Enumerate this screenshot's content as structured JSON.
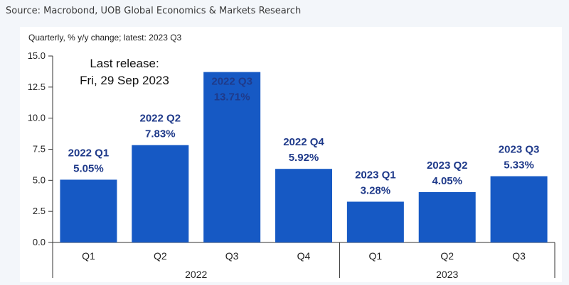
{
  "source": "Source: Macrobond, UOB Global Economics & Markets Research",
  "subtitle": "Quarterly, % y/y change; latest: 2023 Q3",
  "annotation": {
    "line1": "Last release:",
    "line2": "Fri, 29 Sep 2023"
  },
  "chart_data": {
    "type": "bar",
    "categories": [
      "Q1",
      "Q2",
      "Q3",
      "Q4",
      "Q1",
      "Q2",
      "Q3"
    ],
    "groups": [
      {
        "label": "2022",
        "count": 4
      },
      {
        "label": "2023",
        "count": 3
      }
    ],
    "values": [
      5.05,
      7.83,
      13.71,
      5.92,
      3.28,
      4.05,
      5.33
    ],
    "bar_labels": [
      "2022 Q1",
      "2022 Q2",
      "2022 Q3",
      "2022 Q4",
      "2023 Q1",
      "2023 Q2",
      "2023 Q3"
    ],
    "value_labels": [
      "5.05%",
      "7.83%",
      "13.71%",
      "5.92%",
      "3.28%",
      "4.05%",
      "5.33%"
    ],
    "ylim": [
      0,
      15
    ],
    "yticks": [
      "0.0",
      "2.5",
      "5.0",
      "7.5",
      "10.0",
      "12.5",
      "15.0"
    ],
    "grid": false,
    "colors": {
      "bar": "#1659c4",
      "label": "#1f3a8a",
      "label_inside": "#ffffff"
    }
  }
}
